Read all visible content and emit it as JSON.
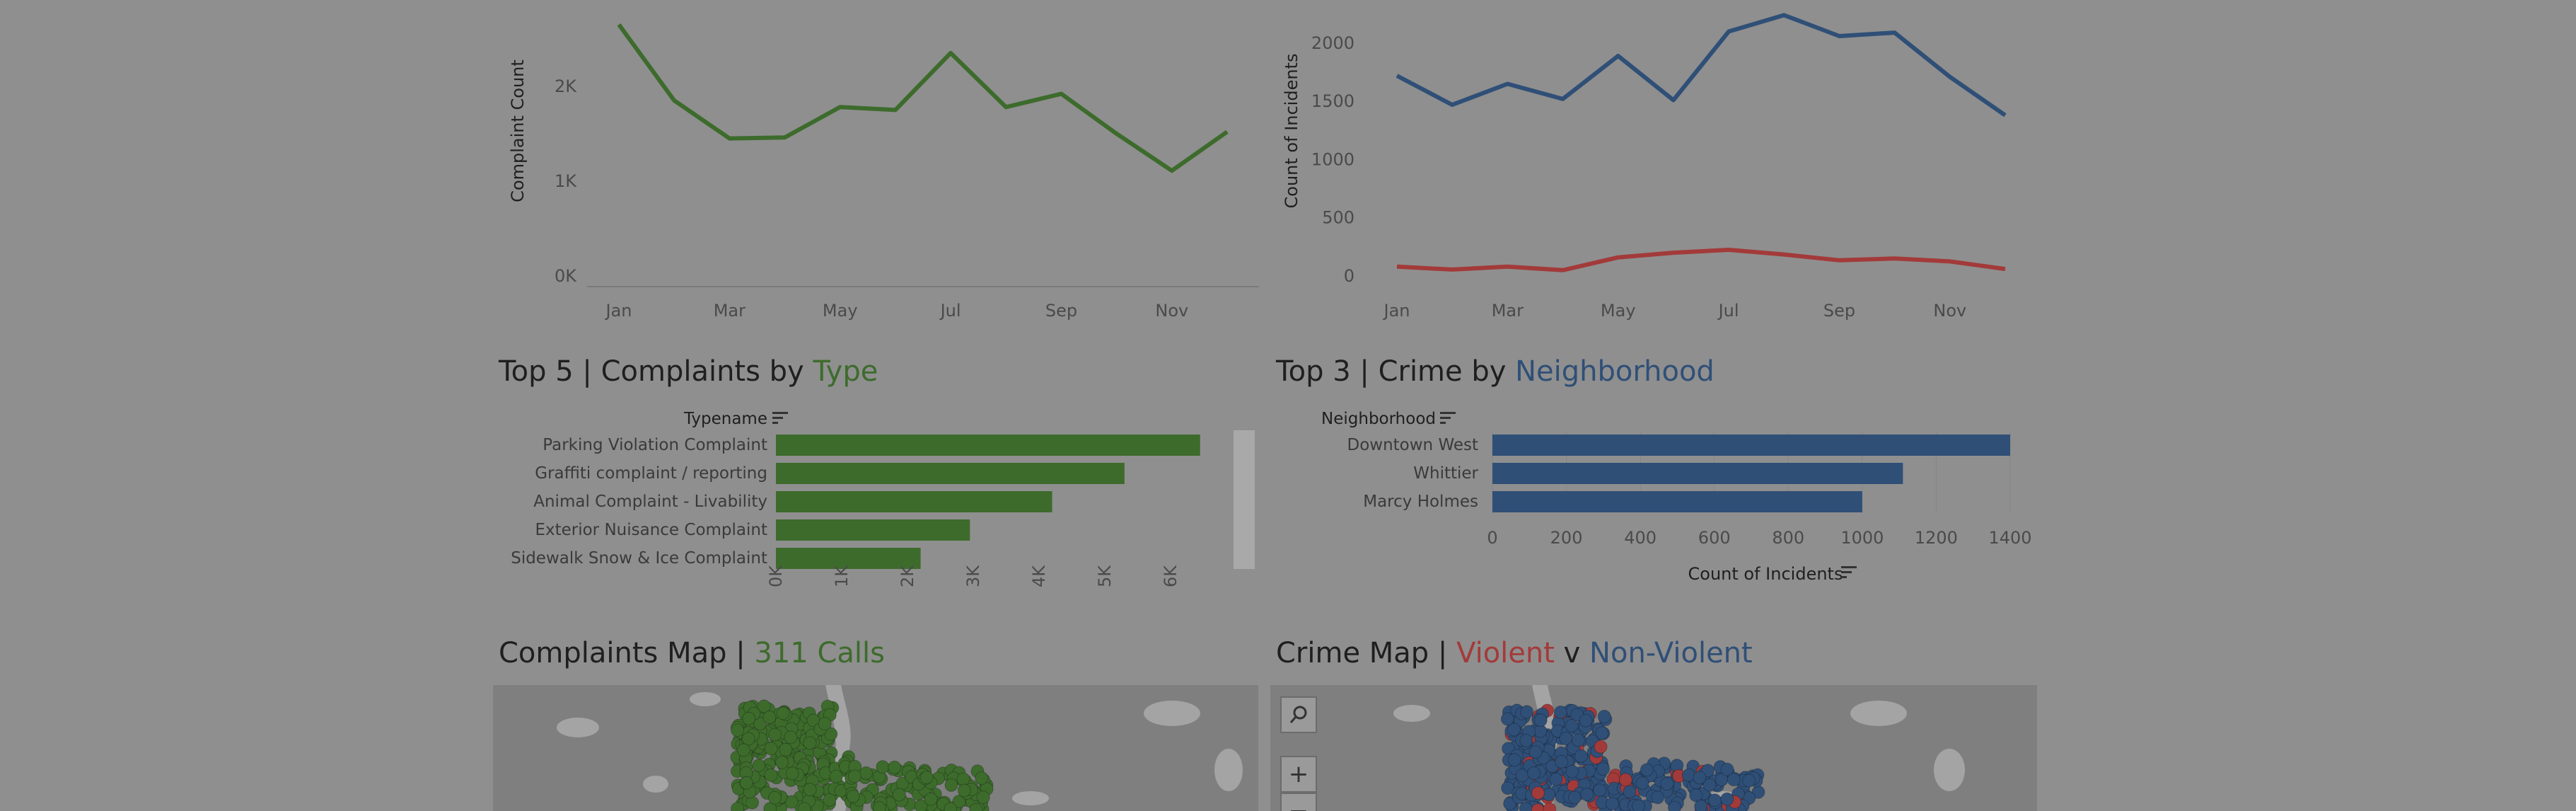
{
  "colors": {
    "background": "#8f8f8f",
    "complaints_green": "#3d6b2c",
    "crime_blue": "#2f4f77",
    "violent_red": "#a33a3a",
    "map_bg": "#7f7f7f"
  },
  "complaints_line": {
    "ylabel": "Complaint Count",
    "chart_data": {
      "type": "line",
      "x": [
        "Jan",
        "Feb",
        "Mar",
        "Apr",
        "May",
        "Jun",
        "Jul",
        "Aug",
        "Sep",
        "Oct",
        "Nov",
        "Dec"
      ],
      "x_ticks": [
        "Jan",
        "Mar",
        "May",
        "Jul",
        "Sep",
        "Nov"
      ],
      "y_ticks": [
        "0K",
        "1K",
        "2K"
      ],
      "ylim": [
        0,
        2700
      ],
      "series": [
        {
          "values": [
            2650,
            1850,
            1450,
            1460,
            1780,
            1750,
            2350,
            1780,
            1920,
            1500,
            1110,
            1520
          ]
        }
      ]
    }
  },
  "crime_line": {
    "ylabel": "Count of Incidents",
    "chart_data": {
      "type": "line",
      "x": [
        "Jan",
        "Feb",
        "Mar",
        "Apr",
        "May",
        "Jun",
        "Jul",
        "Aug",
        "Sep",
        "Oct",
        "Nov",
        "Dec"
      ],
      "x_ticks": [
        "Jan",
        "Mar",
        "May",
        "Jul",
        "Sep",
        "Nov"
      ],
      "y_ticks": [
        "0",
        "500",
        "1000",
        "1500",
        "2000"
      ],
      "ylim": [
        0,
        2200
      ],
      "series": [
        {
          "values": [
            1720,
            1470,
            1650,
            1520,
            1890,
            1510,
            2100,
            2240,
            2060,
            2090,
            1710,
            1380
          ]
        },
        {
          "values": [
            80,
            55,
            80,
            50,
            160,
            200,
            225,
            185,
            135,
            150,
            125,
            60
          ]
        }
      ]
    }
  },
  "complaints_bar": {
    "title_prefix": "Top 5 | Complaints by ",
    "title_accent": "Type",
    "field_header": "Typename",
    "chart_data": {
      "type": "bar",
      "categories": [
        "Parking Violation Complaint",
        "Graffiti complaint / reporting",
        "Animal Complaint - Livability",
        "Exterior Nuisance Complaint",
        "Sidewalk Snow & Ice Complaint"
      ],
      "values": [
        6450,
        5300,
        4200,
        2950,
        2200
      ],
      "x_ticks": [
        "0K",
        "1K",
        "2K",
        "3K",
        "4K",
        "5K",
        "6K"
      ],
      "xlim": [
        0,
        6700
      ]
    }
  },
  "crime_bar": {
    "title_prefix": "Top 3 | Crime by ",
    "title_accent": "Neighborhood",
    "field_header": "Neighborhood",
    "xlabel": "Count of Incidents",
    "chart_data": {
      "type": "bar",
      "categories": [
        "Downtown West",
        "Whittier",
        "Marcy Holmes"
      ],
      "values": [
        1400,
        1110,
        1000
      ],
      "x_ticks": [
        "0",
        "200",
        "400",
        "600",
        "800",
        "1000",
        "1200",
        "1400"
      ],
      "xlim": [
        0,
        1400
      ]
    }
  },
  "complaints_map": {
    "title_prefix": "Complaints Map | ",
    "title_accent": "311 Calls"
  },
  "crime_map": {
    "title_prefix": "Crime Map | ",
    "title_violent": "Violent",
    "title_mid": " v ",
    "title_nonviolent": "Non-Violent",
    "controls": {
      "search_icon": "search-icon",
      "zoom_in": "+",
      "zoom_out": "−"
    }
  }
}
